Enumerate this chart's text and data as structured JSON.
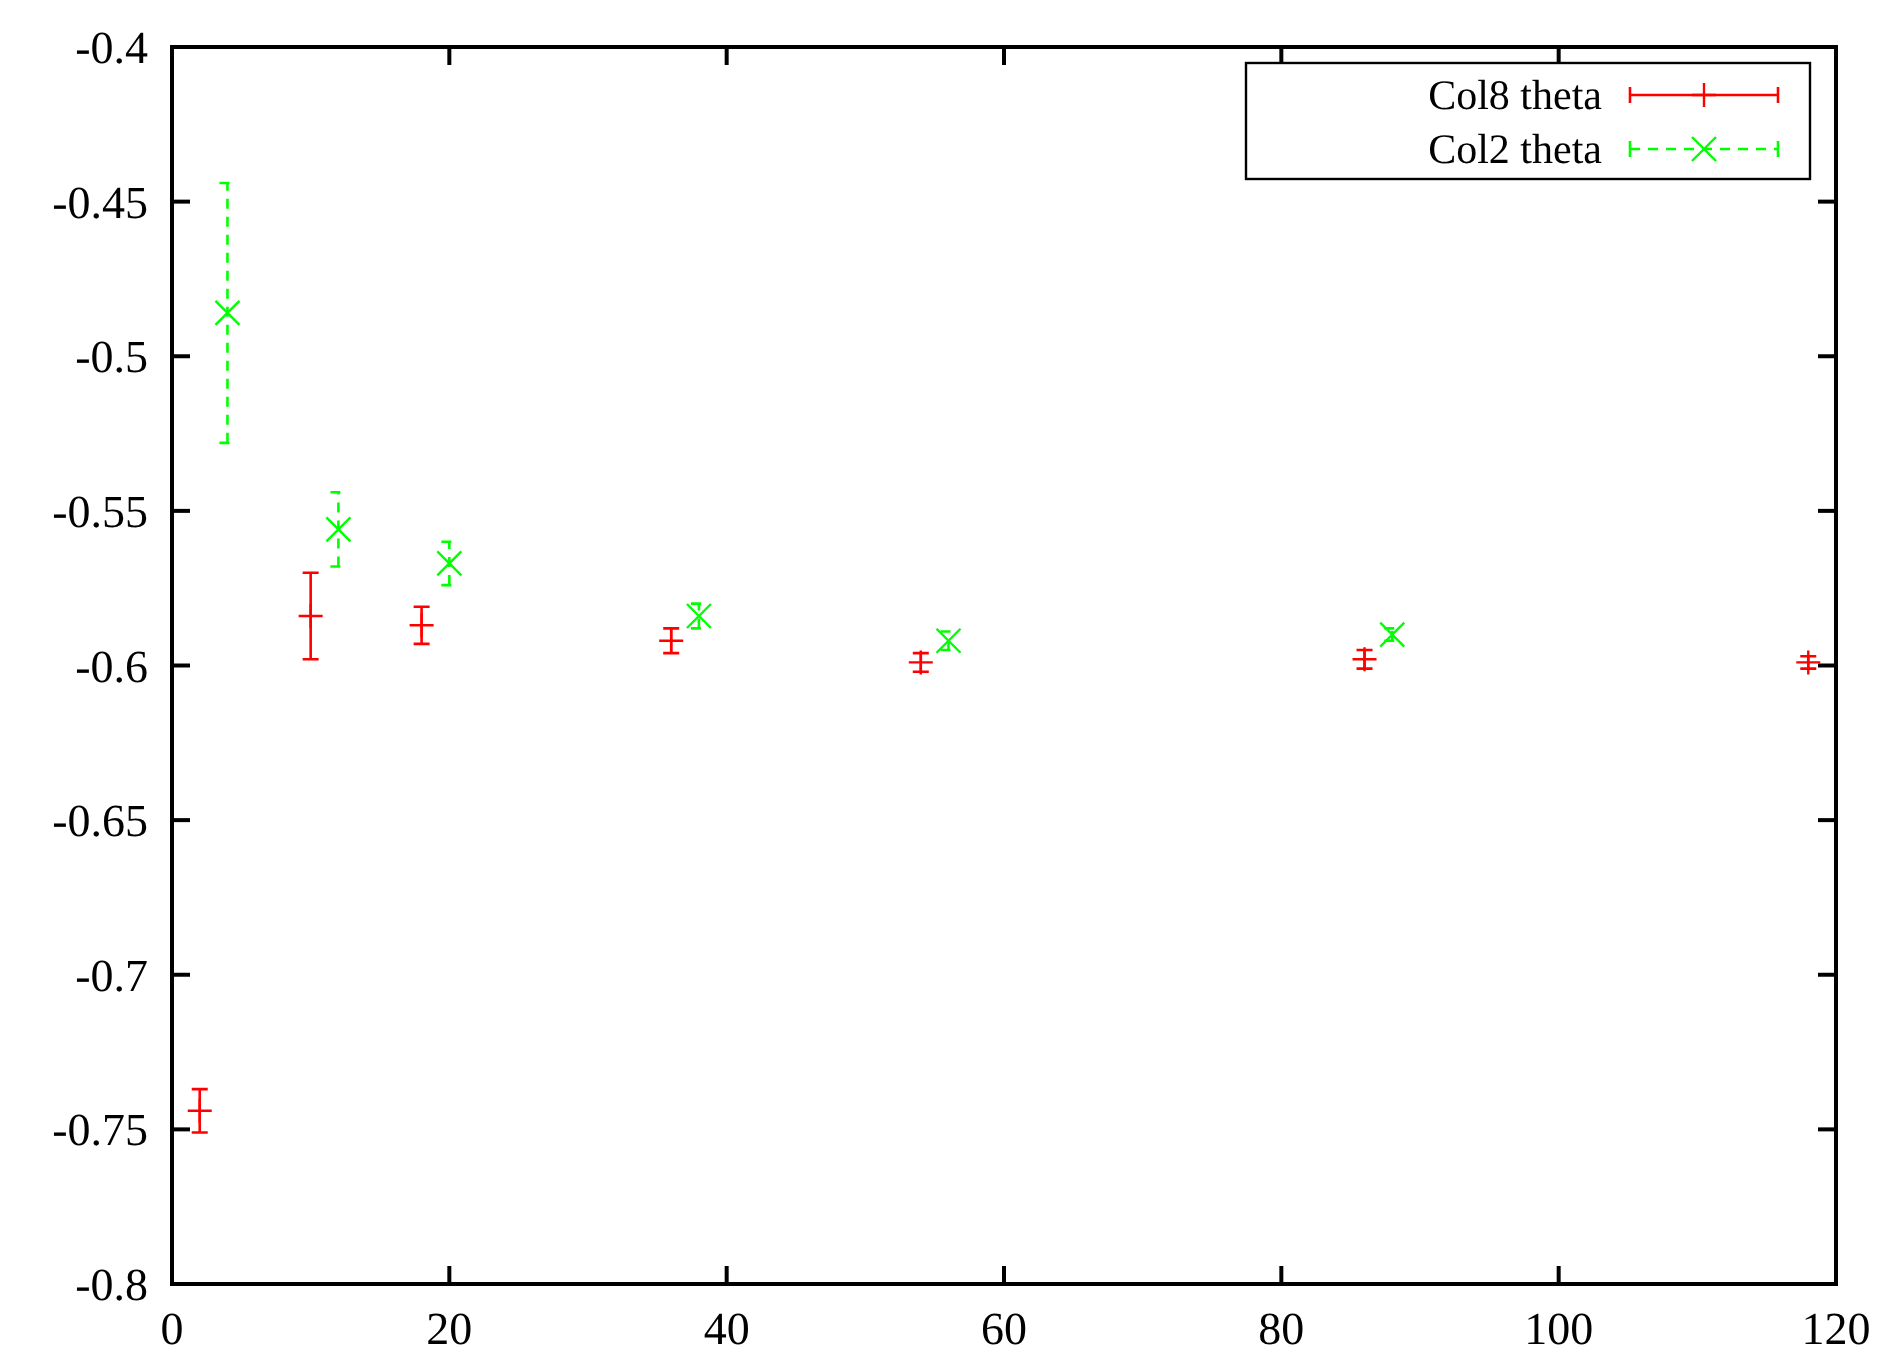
{
  "chart_data": {
    "type": "scatter",
    "xlim": [
      0,
      120
    ],
    "xticks": [
      0,
      20,
      40,
      60,
      80,
      100,
      120
    ],
    "ylim": [
      -0.8,
      -0.4
    ],
    "yticks": [
      -0.8,
      -0.75,
      -0.7,
      -0.65,
      -0.6,
      -0.55,
      -0.5,
      -0.45,
      -0.4
    ],
    "grid": false,
    "legend": "top right",
    "series": [
      {
        "name": "Col8 theta",
        "color": "#ff0000",
        "marker": "plus",
        "line_style": "solid",
        "x": [
          2,
          10,
          18,
          36,
          54,
          86,
          118
        ],
        "values": [
          -0.744,
          -0.584,
          -0.587,
          -0.592,
          -0.599,
          -0.598,
          -0.599
        ],
        "errors": [
          0.007,
          0.014,
          0.006,
          0.004,
          0.003,
          0.003,
          0.002
        ]
      },
      {
        "name": "Col2 theta",
        "color": "#00ff00",
        "marker": "cross",
        "line_style": "dashed",
        "x": [
          4,
          12,
          20,
          38,
          56,
          88
        ],
        "values": [
          -0.486,
          -0.556,
          -0.567,
          -0.584,
          -0.592,
          -0.59
        ],
        "errors": [
          0.042,
          0.012,
          0.007,
          0.004,
          0.003,
          0.002
        ]
      }
    ]
  }
}
